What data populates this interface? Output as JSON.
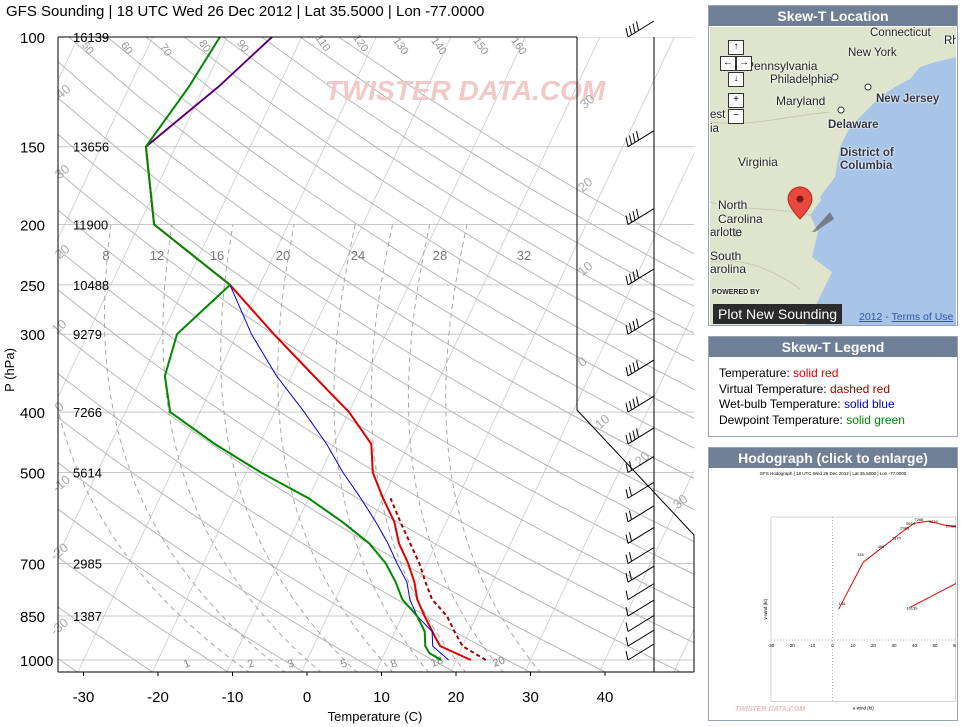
{
  "title": "GFS Sounding | 18 UTC Wed 26 Dec 2012 | Lat 35.5000 | Lon -77.0000",
  "watermark": "TWISTER DATA.COM",
  "chart_data": {
    "type": "line",
    "subtype": "skew-t",
    "xlabel": "Temperature (C)",
    "ylabel": "P (hPa)",
    "x_ticks": [
      -30,
      -20,
      -10,
      0,
      10,
      20,
      30,
      40
    ],
    "pressure_levels": [
      100,
      150,
      200,
      250,
      300,
      400,
      500,
      700,
      850,
      1000
    ],
    "height_labels": [
      "16139",
      "13656",
      "11900",
      "10488",
      "9279",
      "7266",
      "5614",
      "2985",
      "1387",
      ""
    ],
    "mixing_ratio_labels": [
      "1",
      "2",
      "3",
      "5",
      "8",
      "18",
      "20"
    ],
    "wetbulb_labels": [
      "8",
      "12",
      "16",
      "20",
      "24",
      "28",
      "32"
    ],
    "dry_adiabat_labels": [
      "50",
      "60",
      "70",
      "80",
      "90",
      "110",
      "120",
      "130",
      "140",
      "150",
      "160"
    ],
    "skew_labels": [
      "40",
      "30",
      "20",
      "10",
      "0",
      "-10",
      "-20",
      "-30",
      "30",
      "20",
      "10",
      "0",
      "10",
      "20",
      "30"
    ],
    "series": [
      {
        "name": "Temperature",
        "color": "#e00000",
        "style": "solid",
        "points": [
          [
            1000,
            22
          ],
          [
            950,
            17
          ],
          [
            925,
            16
          ],
          [
            850,
            13
          ],
          [
            800,
            11
          ],
          [
            750,
            9.5
          ],
          [
            700,
            7.5
          ],
          [
            650,
            5
          ],
          [
            600,
            3
          ],
          [
            550,
            0
          ],
          [
            500,
            -3
          ],
          [
            450,
            -5
          ],
          [
            400,
            -10
          ],
          [
            350,
            -17
          ],
          [
            300,
            -25
          ],
          [
            250,
            -34
          ],
          [
            200,
            -48
          ],
          [
            150,
            -54
          ],
          [
            120,
            -48
          ],
          [
            100,
            -44
          ]
        ]
      },
      {
        "name": "Virtual Temperature",
        "color": "#a00000",
        "style": "dashed",
        "points": [
          [
            1000,
            24
          ],
          [
            950,
            20
          ],
          [
            900,
            18
          ],
          [
            850,
            16
          ],
          [
            800,
            13
          ],
          [
            750,
            11
          ],
          [
            700,
            9
          ],
          [
            650,
            6.5
          ],
          [
            600,
            3.8
          ],
          [
            550,
            1
          ]
        ]
      },
      {
        "name": "Wet-bulb Temperature",
        "color": "#0000dd",
        "style": "solid",
        "points": [
          [
            1000,
            19
          ],
          [
            950,
            16
          ],
          [
            900,
            15
          ],
          [
            850,
            12
          ],
          [
            800,
            10
          ],
          [
            750,
            8.5
          ],
          [
            700,
            6
          ],
          [
            650,
            3.5
          ],
          [
            600,
            0.5
          ],
          [
            550,
            -3
          ],
          [
            500,
            -7
          ],
          [
            450,
            -11
          ],
          [
            400,
            -16
          ],
          [
            350,
            -22
          ],
          [
            300,
            -28
          ],
          [
            250,
            -34
          ],
          [
            200,
            -48
          ],
          [
            150,
            -54
          ],
          [
            120,
            -48
          ],
          [
            100,
            -44
          ]
        ]
      },
      {
        "name": "Dewpoint Temperature",
        "color": "#008800",
        "style": "solid",
        "points": [
          [
            1000,
            18
          ],
          [
            975,
            16
          ],
          [
            950,
            15
          ],
          [
            900,
            14
          ],
          [
            850,
            12
          ],
          [
            800,
            9
          ],
          [
            750,
            7
          ],
          [
            700,
            4.5
          ],
          [
            650,
            1
          ],
          [
            600,
            -4
          ],
          [
            550,
            -10
          ],
          [
            500,
            -18
          ],
          [
            450,
            -26
          ],
          [
            400,
            -34
          ],
          [
            350,
            -37
          ],
          [
            300,
            -38
          ],
          [
            250,
            -34
          ],
          [
            200,
            -48
          ],
          [
            150,
            -54
          ],
          [
            120,
            -52
          ],
          [
            100,
            -51
          ]
        ]
      }
    ]
  },
  "panels": {
    "map": {
      "heading": "Skew-T Location",
      "labels": [
        "Connecticut",
        "Rh",
        "New York",
        "Pennsylvania",
        "Philadelphia",
        "New Jersey",
        "Maryland",
        "Delaware",
        "District of Columbia",
        "est",
        "ia",
        "Virginia",
        "North Carolina",
        "arlotte",
        "South",
        "arolina",
        "POWERED BY"
      ],
      "plot_button": "Plot New Sounding",
      "footer_year": "2012",
      "footer_sep": " - ",
      "footer_link": "Terms of Use",
      "nav": {
        "up": "↑",
        "left": "←",
        "right": "→",
        "down": "↓",
        "zoom_in": "+",
        "zoom_out": "−"
      }
    },
    "legend": {
      "heading": "Skew-T Legend",
      "items": [
        {
          "label": "Temperature: ",
          "value": "solid red",
          "color": "#dd0000"
        },
        {
          "label": "Virtual Temperature: ",
          "value": "dashed red",
          "color": "#990000"
        },
        {
          "label": "Wet-bulb Temperature: ",
          "value": "solid blue",
          "color": "#0000cc"
        },
        {
          "label": "Dewpoint Temperature: ",
          "value": "solid green",
          "color": "#008800"
        }
      ]
    },
    "hodograph": {
      "heading": "Hodograph (click to enlarge)",
      "mini_title": "GFS Hodograph | 18 UTC Wed 26 Dec 2012 | Lat 35.5000 | Lon -77.0000",
      "x_ticks": [
        "-30",
        "-20",
        "-10",
        "0",
        "10",
        "20",
        "30",
        "40",
        "50",
        "60"
      ],
      "y_ticks": [
        "60",
        "50",
        "40",
        "30",
        "20",
        "10",
        "0",
        "-10",
        "-20",
        "-30"
      ],
      "x_label": "u-wind (kt)",
      "y_label": "v-wind (kt)",
      "labels": [
        "16139",
        "145",
        "315",
        "450",
        "1370",
        "2985",
        "5614",
        "7266",
        "9279",
        "10488",
        "11900"
      ],
      "upper_points": [
        [
          3,
          15
        ],
        [
          15,
          38
        ],
        [
          28,
          48
        ],
        [
          33,
          52
        ],
        [
          40,
          57
        ],
        [
          47,
          58
        ],
        [
          55,
          56
        ],
        [
          63,
          55
        ]
      ],
      "lower_points": [
        [
          38,
          16
        ],
        [
          63,
          29
        ]
      ]
    }
  }
}
